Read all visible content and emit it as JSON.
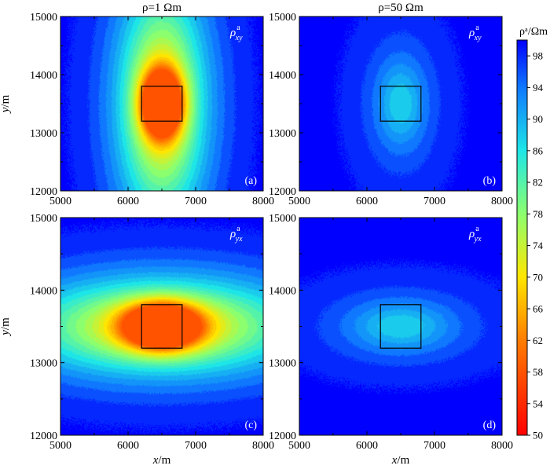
{
  "figure": {
    "colorbar": {
      "title": "ρᵃ/Ωm",
      "min": 50,
      "max": 100,
      "tick_labels": [
        "50",
        "54",
        "58",
        "62",
        "66",
        "70",
        "74",
        "78",
        "82",
        "86",
        "90",
        "94",
        "98"
      ],
      "color_stops": [
        {
          "v": 50,
          "color": "#ff0000"
        },
        {
          "v": 62,
          "color": "#ff7d00"
        },
        {
          "v": 70,
          "color": "#ffe600"
        },
        {
          "v": 78,
          "color": "#8cff6e"
        },
        {
          "v": 86,
          "color": "#1ee6e6"
        },
        {
          "v": 94,
          "color": "#0f78ff"
        },
        {
          "v": 100,
          "color": "#0000ff"
        }
      ]
    },
    "column_titles": [
      "ρ=1 Ωm",
      "ρ=50 Ωm"
    ]
  },
  "chart_data": [
    {
      "type": "heatmap",
      "panel_label": "(a)",
      "component_label": {
        "symbol": "ρ",
        "sup": "a",
        "sub": "xy"
      },
      "x_range": [
        5000,
        8000
      ],
      "y_range": [
        12000,
        15000
      ],
      "x_ticks": [
        "5000",
        "6000",
        "7000",
        "8000"
      ],
      "y_ticks": [
        "12000",
        "13000",
        "14000",
        "15000"
      ],
      "xlabel": "",
      "ylabel": "y/m",
      "target_box": {
        "x": [
          6200,
          6800
        ],
        "y": [
          13200,
          13800
        ]
      },
      "field": {
        "center_x": 6500,
        "center_y": 13500,
        "min_value": 58,
        "lobes": [
          {
            "sx": 200,
            "sy": 380,
            "depth": 44
          },
          {
            "sx": 420,
            "sy": 1350,
            "depth": 24
          },
          {
            "sx": 700,
            "sy": 1800,
            "depth": 7
          }
        ]
      }
    },
    {
      "type": "heatmap",
      "panel_label": "(b)",
      "component_label": {
        "symbol": "ρ",
        "sup": "a",
        "sub": "xy"
      },
      "x_range": [
        5000,
        8000
      ],
      "y_range": [
        12000,
        15000
      ],
      "x_ticks": [
        "5000",
        "6000",
        "7000",
        "8000"
      ],
      "y_ticks": [
        "12000",
        "13000",
        "14000",
        "15000"
      ],
      "xlabel": "",
      "ylabel": "",
      "target_box": {
        "x": [
          6200,
          6800
        ],
        "y": [
          13200,
          13800
        ]
      },
      "field": {
        "center_x": 6500,
        "center_y": 13500,
        "min_value": 88,
        "lobes": [
          {
            "sx": 230,
            "sy": 480,
            "depth": 8
          },
          {
            "sx": 520,
            "sy": 1100,
            "depth": 5
          }
        ]
      }
    },
    {
      "type": "heatmap",
      "panel_label": "(c)",
      "component_label": {
        "symbol": "ρ",
        "sup": "a",
        "sub": "yx"
      },
      "x_range": [
        5000,
        8000
      ],
      "y_range": [
        12000,
        15000
      ],
      "x_ticks": [
        "5000",
        "6000",
        "7000",
        "8000"
      ],
      "y_ticks": [
        "12000",
        "13000",
        "14000",
        "15000"
      ],
      "xlabel": "x/m",
      "ylabel": "y/m",
      "target_box": {
        "x": [
          6200,
          6800
        ],
        "y": [
          13200,
          13800
        ]
      },
      "field": {
        "center_x": 6500,
        "center_y": 13500,
        "min_value": 58,
        "lobes": [
          {
            "sx": 380,
            "sy": 210,
            "depth": 44
          },
          {
            "sx": 1350,
            "sy": 420,
            "depth": 24
          },
          {
            "sx": 1800,
            "sy": 700,
            "depth": 7
          }
        ]
      }
    },
    {
      "type": "heatmap",
      "panel_label": "(d)",
      "component_label": {
        "symbol": "ρ",
        "sup": "a",
        "sub": "yx"
      },
      "x_range": [
        5000,
        8000
      ],
      "y_range": [
        12000,
        15000
      ],
      "x_ticks": [
        "5000",
        "6000",
        "7000",
        "8000"
      ],
      "y_ticks": [
        "12000",
        "13000",
        "14000",
        "15000"
      ],
      "xlabel": "x/m",
      "ylabel": "",
      "target_box": {
        "x": [
          6200,
          6800
        ],
        "y": [
          13200,
          13800
        ]
      },
      "field": {
        "center_x": 6500,
        "center_y": 13500,
        "min_value": 88,
        "lobes": [
          {
            "sx": 480,
            "sy": 220,
            "depth": 8
          },
          {
            "sx": 1100,
            "sy": 480,
            "depth": 5
          }
        ]
      }
    }
  ]
}
